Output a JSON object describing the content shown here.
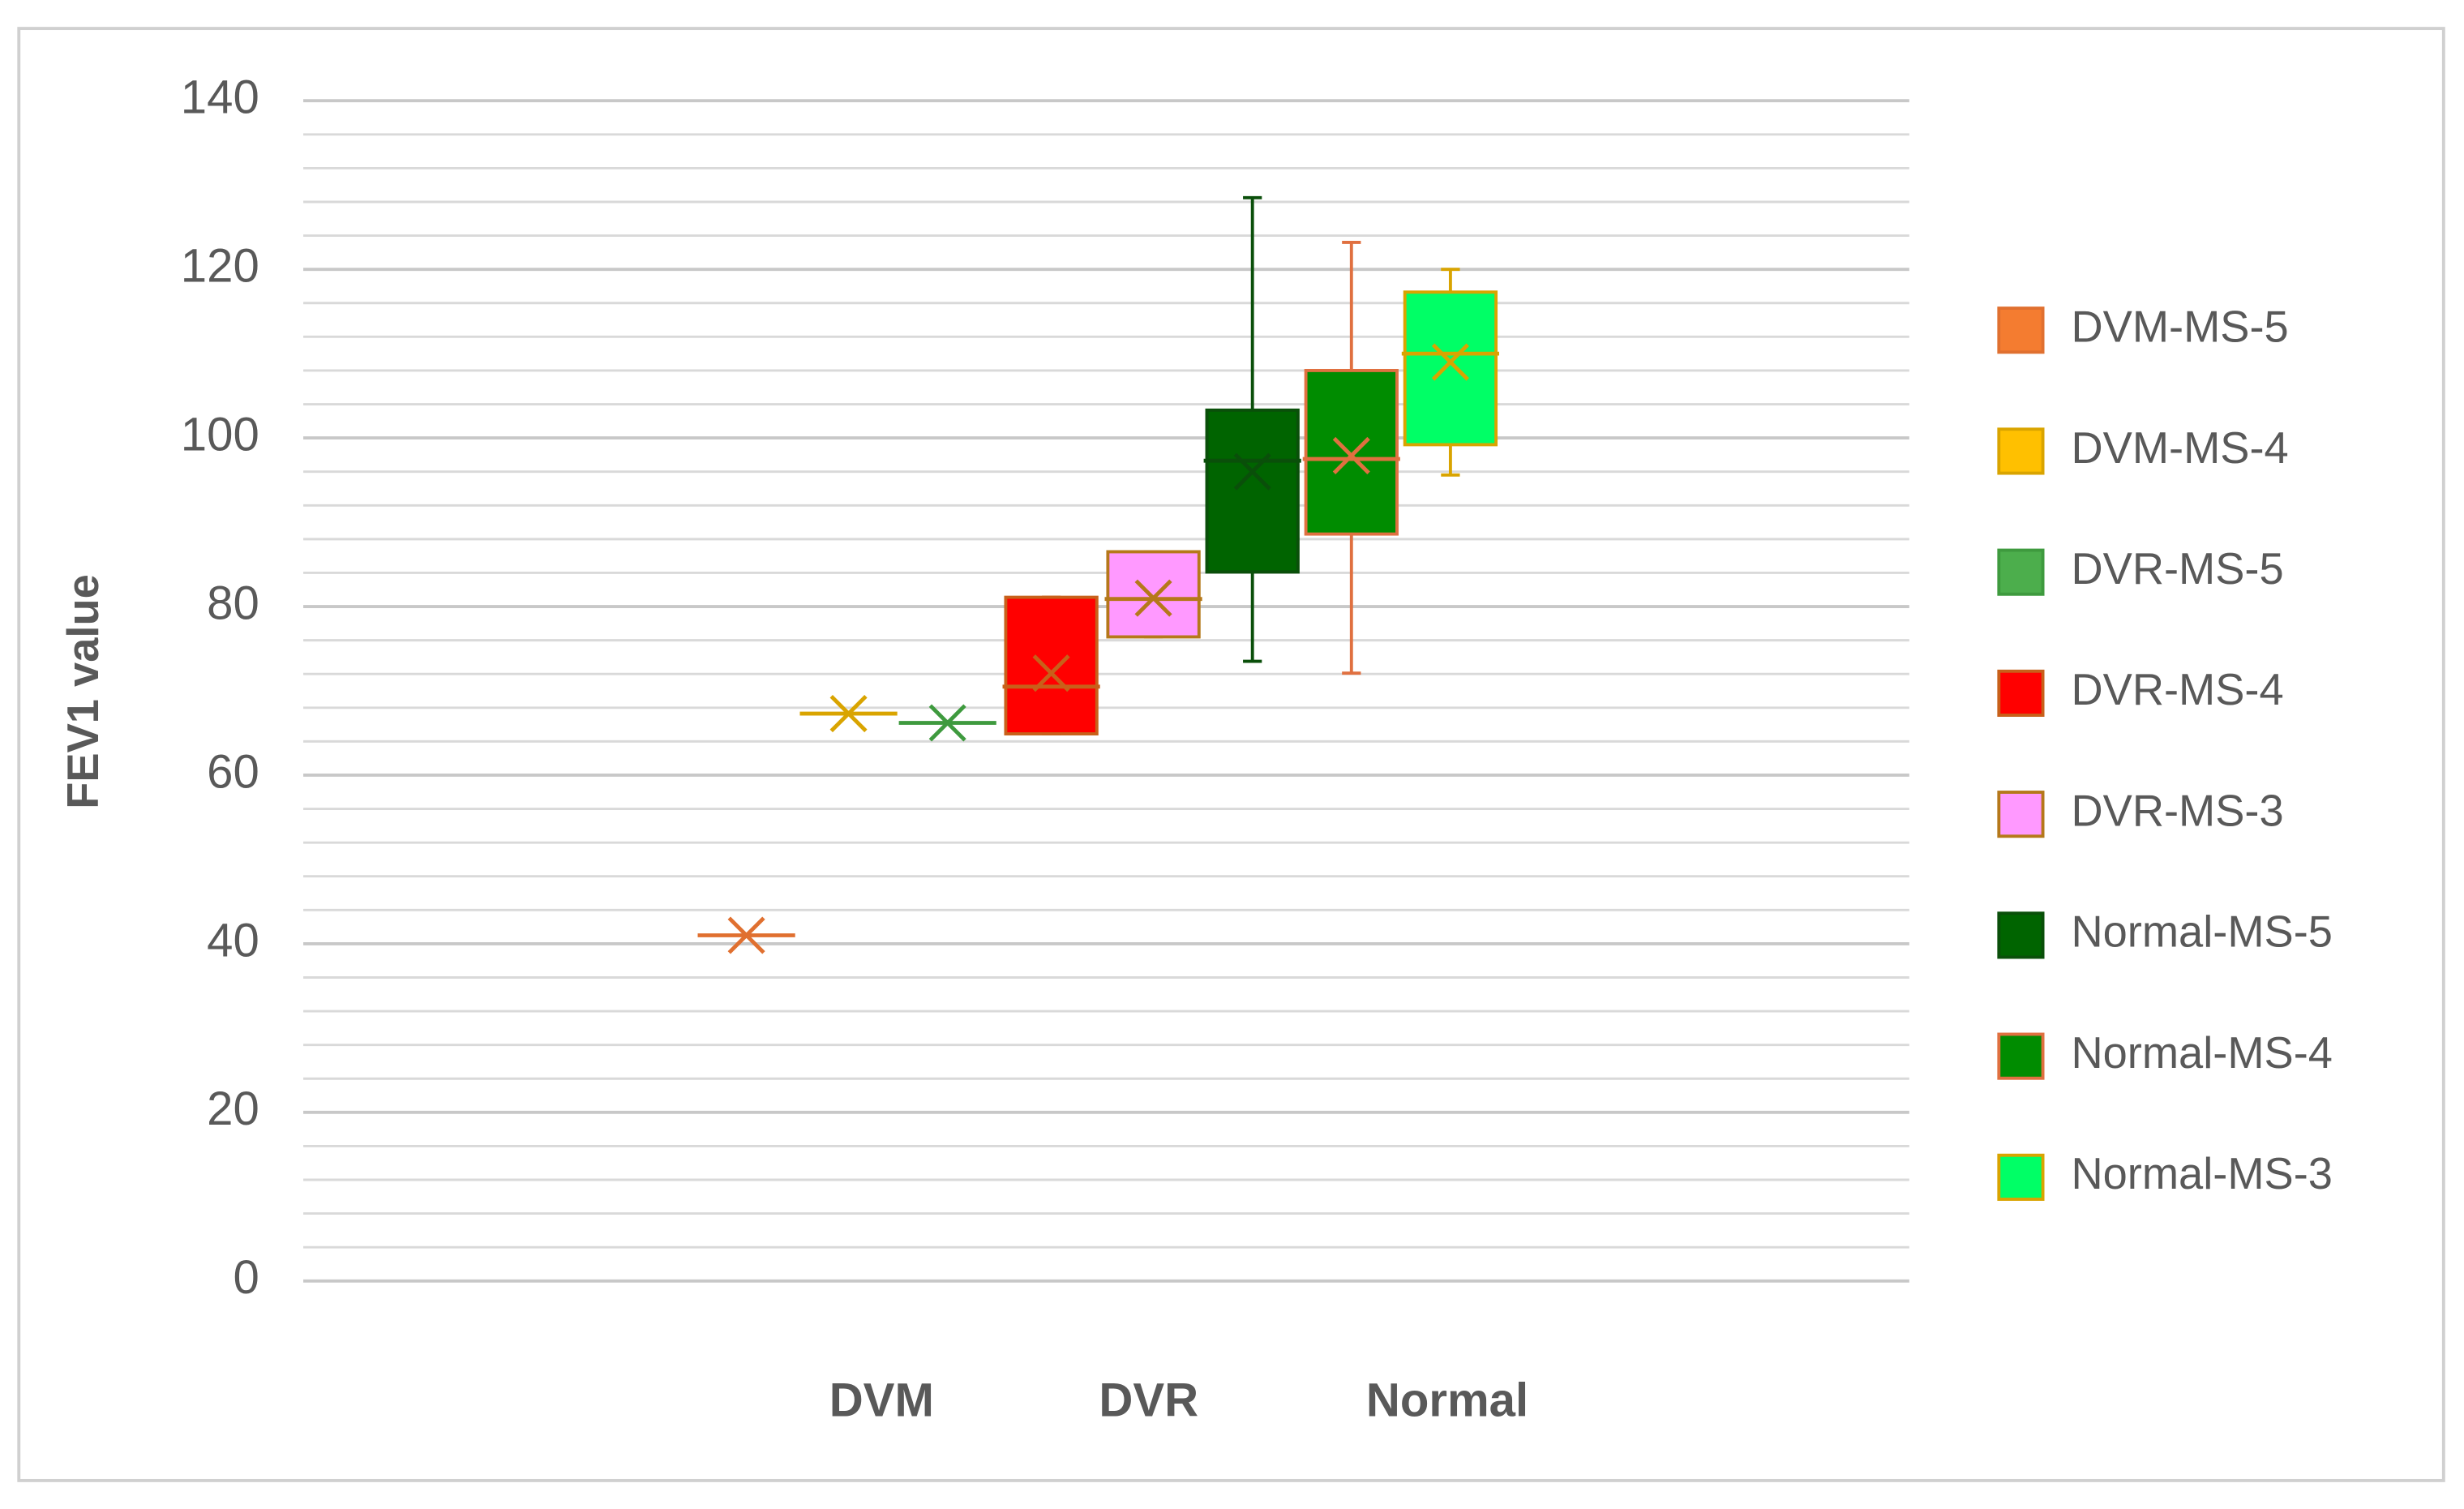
{
  "chart_data": {
    "type": "box",
    "y_label": "FEV1 value",
    "categories": [
      "DVM",
      "DVR",
      "Normal"
    ],
    "ylim": [
      0,
      140
    ],
    "yticks": [
      0,
      20,
      40,
      60,
      80,
      100,
      120,
      140
    ],
    "minor_yticks": [
      4,
      8,
      12,
      16,
      24,
      28,
      32,
      36,
      44,
      48,
      52,
      56,
      64,
      68,
      72,
      76,
      84,
      88,
      92,
      96,
      104,
      108,
      112,
      116,
      124,
      128,
      132,
      136
    ],
    "grid": true,
    "legend": "right",
    "series": [
      {
        "name": "DVM-MS-5",
        "color": "#f47c30",
        "line_color": "#e07030",
        "values": {
          "min": 41,
          "q1": 41,
          "median": 41,
          "q3": 41,
          "max": 41,
          "mean": 41
        }
      },
      {
        "name": "DVM-MS-4",
        "color": "#ffc000",
        "line_color": "#d9a400",
        "values": {
          "min": 67.3,
          "q1": 67.3,
          "median": 67.3,
          "q3": 67.3,
          "max": 67.3,
          "mean": 67.3
        }
      },
      {
        "name": "DVR-MS-5",
        "color": "#4cae4c",
        "line_color": "#3e9a3e",
        "values": {
          "min": 66.2,
          "q1": 66.2,
          "median": 66.2,
          "q3": 66.2,
          "max": 66.2,
          "mean": 66.2
        }
      },
      {
        "name": "DVR-MS-4",
        "color": "#ff0000",
        "line_color": "#c8601a",
        "values": {
          "min": 64.9,
          "q1": 64.9,
          "median": 70.5,
          "q3": 81.1,
          "max": 81.1,
          "mean": 72.1
        }
      },
      {
        "name": "DVR-MS-3",
        "color": "#ff99ff",
        "line_color": "#b5781a",
        "values": {
          "min": 76.4,
          "q1": 76.4,
          "median": 80.9,
          "q3": 86.5,
          "max": 86.5,
          "mean": 81
        }
      },
      {
        "name": "Normal-MS-5",
        "color": "#006400",
        "line_color": "#0a4f0a",
        "values": {
          "min": 73.5,
          "q1": 84.1,
          "median": 97.3,
          "q3": 103.3,
          "max": 128.5,
          "mean": 96
        }
      },
      {
        "name": "Normal-MS-4",
        "color": "#008c00",
        "line_color": "#e07040",
        "values": {
          "min": 72.1,
          "q1": 88.6,
          "median": 97.5,
          "q3": 108,
          "max": 123.2,
          "mean": 97.9
        }
      },
      {
        "name": "Normal-MS-3",
        "color": "#00ff66",
        "line_color": "#d9a400",
        "values": {
          "min": 95.6,
          "q1": 99.2,
          "median": 110,
          "q3": 117.3,
          "max": 120,
          "mean": 109
        }
      }
    ]
  }
}
